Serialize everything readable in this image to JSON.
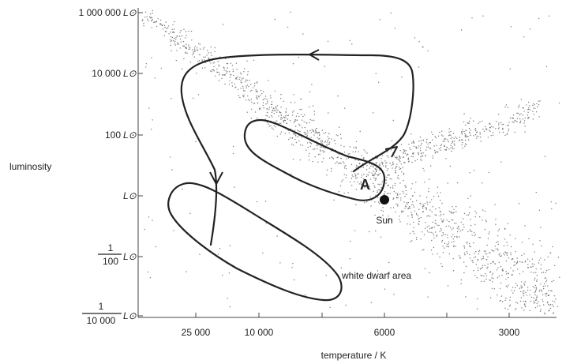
{
  "axes": {
    "y_title": "luminosity",
    "x_title": "temperature / K",
    "y_scale": "log",
    "x_direction": "decreasing-right",
    "y_ticks": [
      {
        "value": "1 000 000",
        "unit": "L⊙"
      },
      {
        "value": "10 000",
        "unit": "L⊙"
      },
      {
        "value": "100",
        "unit": "L⊙"
      },
      {
        "value": "",
        "unit": "L⊙"
      },
      {
        "numerator": "1",
        "denominator": "100",
        "unit": "L⊙"
      },
      {
        "numerator": "1",
        "denominator": "10 000",
        "unit": "L⊙"
      }
    ],
    "x_ticks": [
      "25 000",
      "10 000",
      "6000",
      "3000"
    ]
  },
  "labels": {
    "point_a": "A",
    "sun": "Sun",
    "white_dwarf": "white dwarf area"
  },
  "features": {
    "main_sequence": "scatter band",
    "giant_branch": "scatter band",
    "evolution_path": "loop with arrows",
    "white_dwarf_region": "closed outline"
  },
  "colors": {
    "ink": "#222222",
    "dots": "#777777",
    "background": "#ffffff"
  }
}
